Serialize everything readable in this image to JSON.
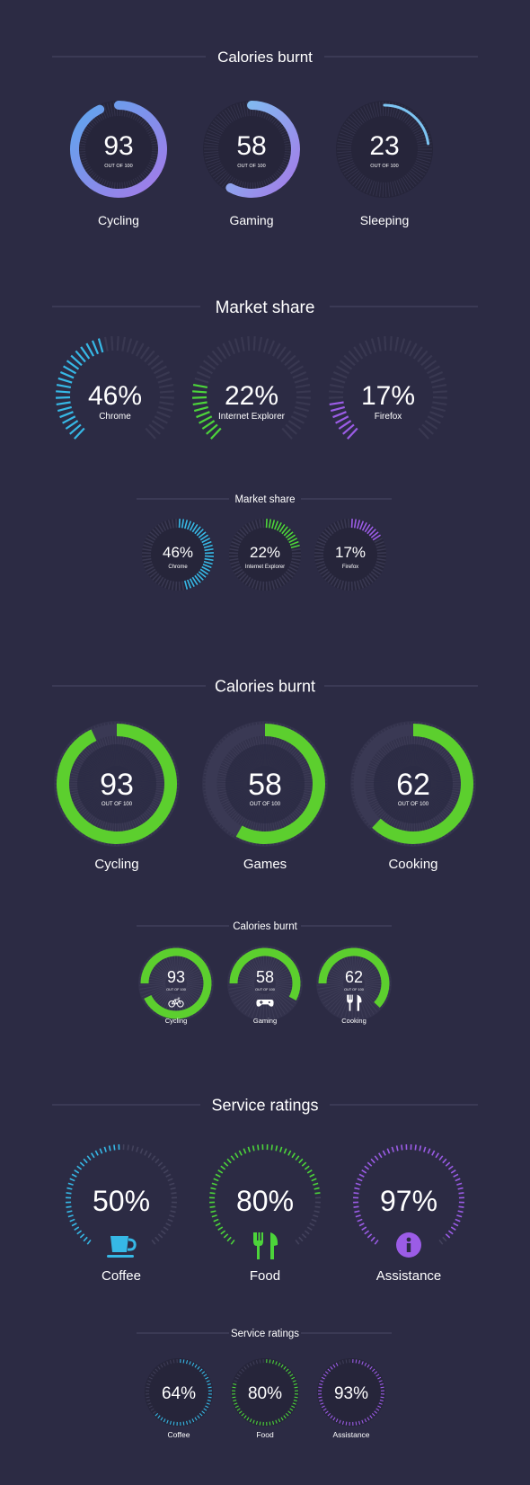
{
  "colors": {
    "background": "#2c2b44",
    "track": "#3c3b55",
    "disc": "#26253a",
    "rule": "#4a4966",
    "blue": "#36b8e6",
    "blue_light": "#7cc4f2",
    "purple": "#9b6ae6",
    "green": "#5ccf2e",
    "green_light": "#6ee43a"
  },
  "sections": [
    {
      "title": "Calories burnt",
      "style": "progress-ring",
      "items": [
        {
          "value": "93",
          "fraction": 0.93,
          "sub": "OUT OF 100",
          "label": "Cycling",
          "color": "#5ea6ee",
          "color2": "#a47ae8"
        },
        {
          "value": "58",
          "fraction": 0.58,
          "sub": "OUT OF 100",
          "label": "Gaming",
          "color": "#7cc4f2",
          "color2": "#a47ae8"
        },
        {
          "value": "23",
          "fraction": 0.23,
          "sub": "OUT OF 100",
          "label": "Sleeping",
          "color": "#7cc4f2",
          "color2": "#7cc4f2"
        }
      ]
    },
    {
      "title": "Market share",
      "style": "gauge-ticks",
      "items": [
        {
          "value": "46%",
          "fraction": 0.46,
          "label": "Chrome",
          "color": "#36b8e6"
        },
        {
          "value": "22%",
          "fraction": 0.22,
          "label": "Internet Explorer",
          "color": "#4cd43a"
        },
        {
          "value": "17%",
          "fraction": 0.17,
          "label": "Firefox",
          "color": "#9b5ce6"
        }
      ]
    },
    {
      "title": "Market share",
      "style": "small-ticks",
      "items": [
        {
          "value": "46%",
          "fraction": 0.46,
          "label": "Chrome",
          "color": "#36b8e6"
        },
        {
          "value": "22%",
          "fraction": 0.22,
          "label": "Internet Explorer",
          "color": "#4cd43a"
        },
        {
          "value": "17%",
          "fraction": 0.17,
          "label": "Firefox",
          "color": "#9b5ce6"
        }
      ]
    },
    {
      "title": "Calories burnt",
      "style": "green-ring",
      "items": [
        {
          "value": "93",
          "fraction": 0.93,
          "sub": "OUT OF 100",
          "label": "Cycling"
        },
        {
          "value": "58",
          "fraction": 0.58,
          "sub": "OUT OF 100",
          "label": "Games"
        },
        {
          "value": "62",
          "fraction": 0.62,
          "sub": "OUT OF 100",
          "label": "Cooking"
        }
      ]
    },
    {
      "title": "Calories burnt",
      "style": "small-green-ring",
      "items": [
        {
          "value": "93",
          "fraction": 0.93,
          "sub": "OUT OF 100",
          "label": "Cycling",
          "icon": "bicycle-icon"
        },
        {
          "value": "58",
          "fraction": 0.58,
          "sub": "OUT OF 100",
          "label": "Gaming",
          "icon": "gamepad-icon"
        },
        {
          "value": "62",
          "fraction": 0.62,
          "sub": "OUT OF 100",
          "label": "Cooking",
          "icon": "fork-knife-icon"
        }
      ]
    },
    {
      "title": "Service ratings",
      "style": "dotted-gauge",
      "items": [
        {
          "value": "50%",
          "fraction": 0.5,
          "label": "Coffee",
          "color": "#36b8e6",
          "icon": "coffee-cup-icon"
        },
        {
          "value": "80%",
          "fraction": 0.8,
          "label": "Food",
          "color": "#4cd43a",
          "icon": "fork-knife-icon"
        },
        {
          "value": "97%",
          "fraction": 0.97,
          "label": "Assistance",
          "color": "#9b5ce6",
          "icon": "info-icon"
        }
      ]
    },
    {
      "title": "Service ratings",
      "style": "small-dotted",
      "items": [
        {
          "value": "64%",
          "fraction": 0.64,
          "label": "Coffee",
          "color": "#36b8e6"
        },
        {
          "value": "80%",
          "fraction": 0.8,
          "label": "Food",
          "color": "#4cd43a"
        },
        {
          "value": "93%",
          "fraction": 0.93,
          "label": "Assistance",
          "color": "#9b5ce6"
        }
      ]
    }
  ]
}
